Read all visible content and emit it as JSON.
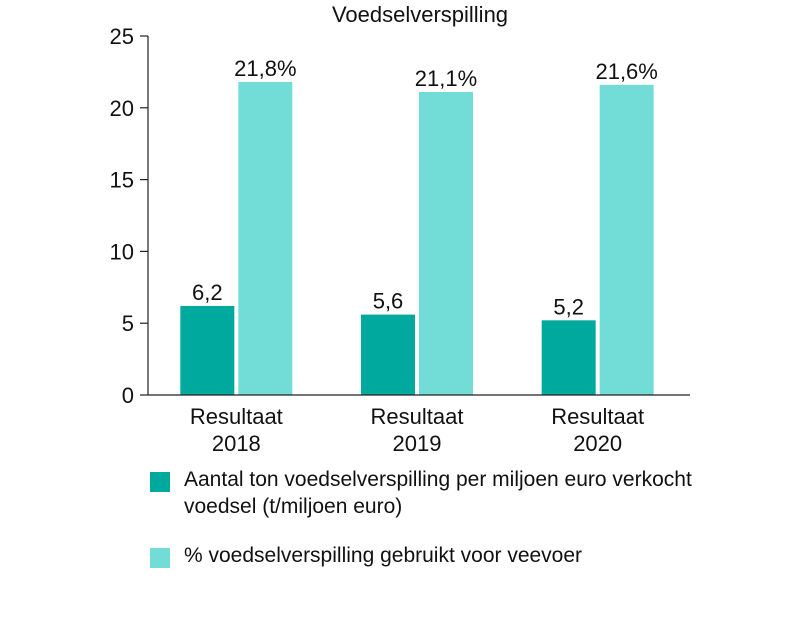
{
  "chart_data": {
    "type": "bar",
    "title": "Voedselverspilling",
    "categories": [
      [
        "Resultaat",
        "2018"
      ],
      [
        "Resultaat",
        "2019"
      ],
      [
        "Resultaat",
        "2020"
      ]
    ],
    "ylim": [
      0,
      25
    ],
    "yticks": [
      0,
      5,
      10,
      15,
      20,
      25
    ],
    "series": [
      {
        "name": "Aantal ton voedselverspilling per miljoen euro verkocht voedsel (t/miljoen euro)",
        "values": [
          6.2,
          5.6,
          5.2
        ],
        "labels": [
          "6,2",
          "5,6",
          "5,2"
        ],
        "color": "#00a99d"
      },
      {
        "name": "% voedselverspilling gebruikt voor veevoer",
        "values": [
          21.8,
          21.1,
          21.6
        ],
        "labels": [
          "21,8%",
          "21,1%",
          "21,6%"
        ],
        "color": "#71ddd6"
      }
    ],
    "grid": false,
    "legend": "bottom"
  }
}
